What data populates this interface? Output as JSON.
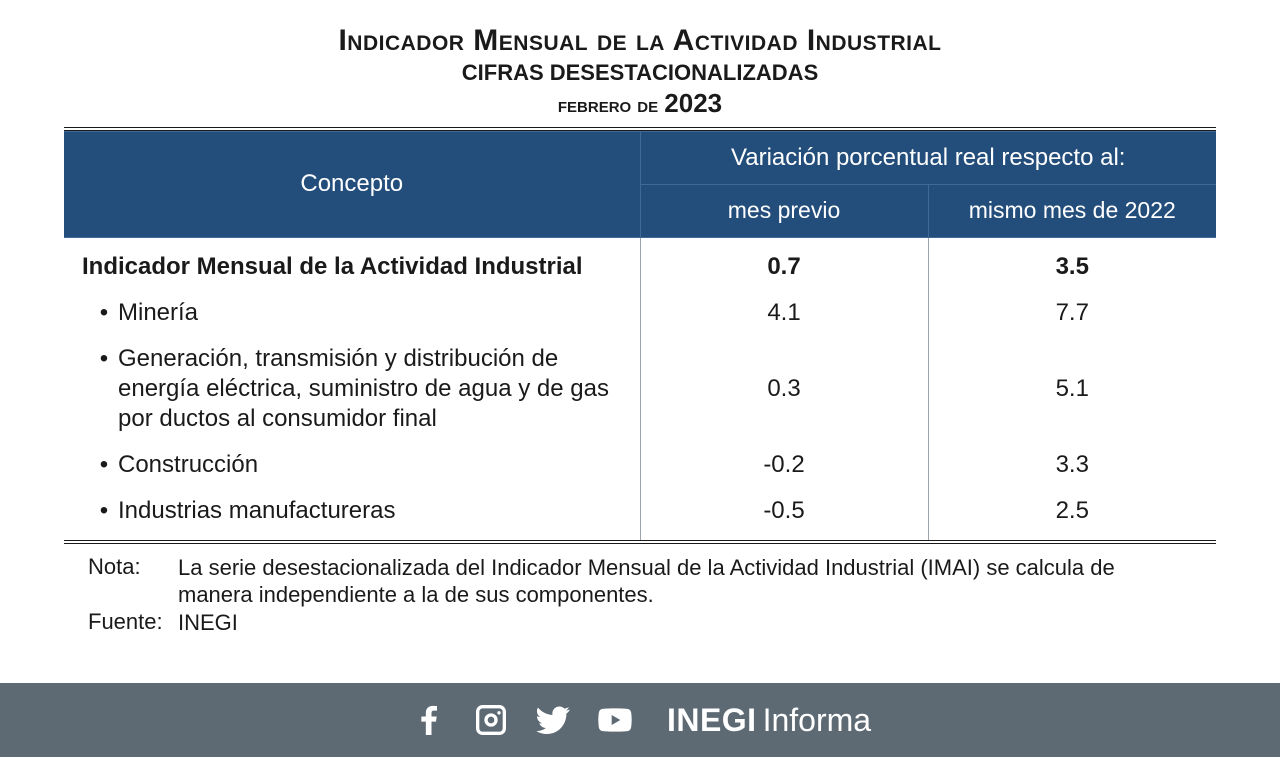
{
  "title": {
    "main": "Indicador Mensual de la Actividad Industrial",
    "sub": "cifras desestacionalizadas",
    "month": "febrero de",
    "year": "2023"
  },
  "table": {
    "header": {
      "concept": "Concepto",
      "variation": "Variación porcentual real respecto al:",
      "col1": "mes previo",
      "col2": "mismo mes de 2022"
    },
    "header_bg": "#234e7c",
    "header_border": "#3f6a98",
    "header_text_color": "#ffffff",
    "body_text_color": "#1a1a1a",
    "divider_color": "#9aa4ad",
    "outer_border_color": "#1a1a1a",
    "col_widths": [
      "50%",
      "25%",
      "25%"
    ],
    "header_fontsize": 24,
    "body_fontsize": 24,
    "rows": [
      {
        "label": "Indicador Mensual de la Actividad Industrial",
        "v1": "0.7",
        "v2": "3.5",
        "bold": true,
        "bullet": false
      },
      {
        "label": "Minería",
        "v1": "4.1",
        "v2": "7.7",
        "bold": false,
        "bullet": true
      },
      {
        "label": "Generación, transmisión y distribución de energía eléctrica, suministro de agua y de gas por ductos al consumidor final",
        "v1": "0.3",
        "v2": "5.1",
        "bold": false,
        "bullet": true
      },
      {
        "label": "Construcción",
        "v1": "-0.2",
        "v2": "3.3",
        "bold": false,
        "bullet": true
      },
      {
        "label": "Industrias manufactureras",
        "v1": "-0.5",
        "v2": "2.5",
        "bold": false,
        "bullet": true
      }
    ]
  },
  "footnotes": {
    "note_label": "Nota:",
    "note_text": "La serie desestacionalizada del Indicador Mensual de la Actividad Industrial (IMAI) se calcula de manera independiente a la de sus componentes.",
    "source_label": "Fuente:",
    "source_text": "INEGI"
  },
  "footer": {
    "bg": "#5d6a74",
    "icon_color": "#ffffff",
    "icons": [
      "facebook",
      "instagram",
      "twitter",
      "youtube"
    ],
    "brand_bold": "INEGI",
    "brand_light": "Informa"
  }
}
